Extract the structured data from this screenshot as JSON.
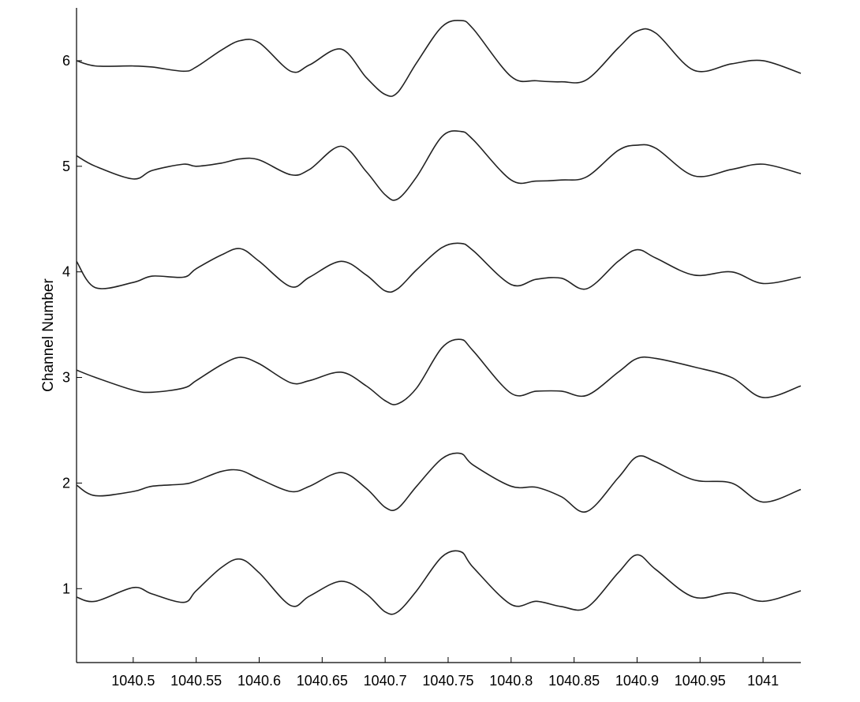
{
  "chart_data": {
    "type": "line",
    "title": "",
    "xlabel": "",
    "ylabel": "Channel Number",
    "xlim": [
      1040.455,
      1041.03
    ],
    "ylim": [
      0.3,
      6.5
    ],
    "grid": false,
    "xticks": [
      1040.5,
      1040.55,
      1040.6,
      1040.65,
      1040.7,
      1040.75,
      1040.8,
      1040.85,
      1040.9,
      1040.95,
      1041
    ],
    "xtick_labels": [
      "1040.5",
      "1040.55",
      "1040.6",
      "1040.65",
      "1040.7",
      "1040.75",
      "1040.8",
      "1040.85",
      "1040.9",
      "1040.95",
      "1041"
    ],
    "yticks": [
      1,
      2,
      3,
      4,
      5,
      6
    ],
    "ytick_labels": [
      "1",
      "2",
      "3",
      "4",
      "5",
      "6"
    ],
    "x": [
      1040.455,
      1040.47,
      1040.5,
      1040.515,
      1040.54,
      1040.55,
      1040.57,
      1040.585,
      1040.6,
      1040.625,
      1040.64,
      1040.665,
      1040.685,
      1040.7,
      1040.71,
      1040.725,
      1040.745,
      1040.76,
      1040.77,
      1040.8,
      1040.82,
      1040.84,
      1040.86,
      1040.885,
      1040.9,
      1040.915,
      1040.945,
      1040.975,
      1041,
      1041.03
    ],
    "series": [
      {
        "values": [
          0.92,
          0.88,
          1.01,
          0.95,
          0.87,
          0.98,
          1.2,
          1.28,
          1.15,
          0.84,
          0.93,
          1.07,
          0.95,
          0.78,
          0.78,
          0.98,
          1.3,
          1.35,
          1.2,
          0.85,
          0.88,
          0.83,
          0.82,
          1.15,
          1.32,
          1.18,
          0.92,
          0.96,
          0.88,
          0.98
        ]
      },
      {
        "values": [
          1.98,
          1.88,
          1.92,
          1.97,
          1.99,
          2.02,
          2.11,
          2.12,
          2.04,
          1.92,
          1.97,
          2.1,
          1.95,
          1.77,
          1.76,
          1.97,
          2.23,
          2.28,
          2.17,
          1.97,
          1.96,
          1.87,
          1.73,
          2.05,
          2.25,
          2.2,
          2.03,
          2.0,
          1.82,
          1.94
        ]
      },
      {
        "values": [
          3.07,
          3.0,
          2.88,
          2.86,
          2.9,
          2.97,
          3.12,
          3.19,
          3.13,
          2.95,
          2.97,
          3.05,
          2.92,
          2.78,
          2.75,
          2.9,
          3.28,
          3.36,
          3.25,
          2.85,
          2.87,
          2.87,
          2.83,
          3.05,
          3.18,
          3.18,
          3.1,
          3.0,
          2.81,
          2.92
        ]
      },
      {
        "values": [
          4.1,
          3.85,
          3.9,
          3.96,
          3.95,
          4.03,
          4.16,
          4.22,
          4.1,
          3.86,
          3.95,
          4.1,
          3.97,
          3.82,
          3.84,
          4.02,
          4.23,
          4.27,
          4.2,
          3.88,
          3.93,
          3.94,
          3.84,
          4.1,
          4.21,
          4.13,
          3.97,
          4.0,
          3.89,
          3.95
        ]
      },
      {
        "values": [
          5.1,
          5.0,
          4.88,
          4.96,
          5.02,
          5.0,
          5.03,
          5.07,
          5.06,
          4.92,
          4.97,
          5.19,
          4.95,
          4.73,
          4.69,
          4.9,
          5.28,
          5.33,
          5.25,
          4.87,
          4.86,
          4.87,
          4.9,
          5.15,
          5.2,
          5.17,
          4.91,
          4.97,
          5.02,
          4.93
        ]
      },
      {
        "values": [
          6.0,
          5.95,
          5.95,
          5.94,
          5.9,
          5.94,
          6.1,
          6.19,
          6.17,
          5.9,
          5.96,
          6.11,
          5.84,
          5.68,
          5.7,
          5.98,
          6.32,
          6.38,
          6.3,
          5.85,
          5.81,
          5.8,
          5.82,
          6.12,
          6.28,
          6.26,
          5.91,
          5.97,
          6.0,
          5.88
        ]
      }
    ]
  }
}
